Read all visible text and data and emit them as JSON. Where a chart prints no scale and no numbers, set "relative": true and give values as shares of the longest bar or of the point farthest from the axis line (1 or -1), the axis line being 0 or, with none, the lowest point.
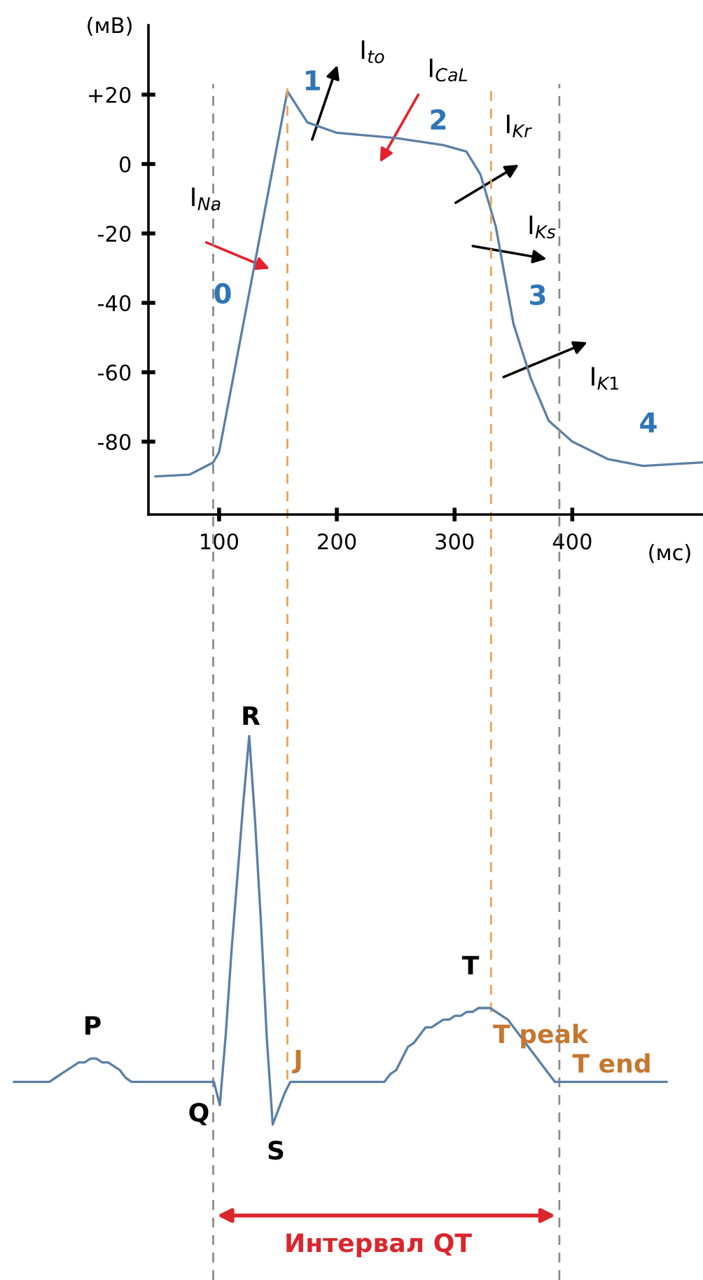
{
  "chart_data": [
    {
      "type": "line",
      "xlabel": "(мс)",
      "ylabel": "(мВ)",
      "x": [
        46,
        75,
        95,
        100,
        158,
        175,
        200,
        250,
        290,
        310,
        322,
        335,
        350,
        365,
        380,
        400,
        430,
        460,
        510
      ],
      "series": [
        {
          "color": "#5b7fa6",
          "values": [
            -90,
            -89.5,
            -86,
            -83,
            21,
            12,
            9,
            7.5,
            5.5,
            3.6,
            -3,
            -18,
            -46,
            -62,
            -74,
            -80,
            -85,
            -87,
            -86
          ]
        }
      ],
      "xlim": [
        40,
        511
      ],
      "ylim": [
        -101,
        40
      ],
      "xticks": [
        100,
        200,
        300,
        400
      ],
      "yticks": [
        {
          "value": 20,
          "label": "+20"
        },
        0,
        -20,
        -40,
        -60,
        -80
      ],
      "ref_lines": [
        {
          "axis": "x",
          "value": 95,
          "color": "#8c8c8c",
          "line_style": "dashed"
        },
        {
          "axis": "x",
          "value": 158,
          "color": "#e8a35a",
          "line_style": "dashed"
        },
        {
          "axis": "x",
          "value": 331,
          "color": "#e8a35a",
          "line_style": "dashed"
        },
        {
          "axis": "x",
          "value": 389,
          "color": "#8c8c8c",
          "line_style": "dashed"
        }
      ],
      "annotations": [
        "0",
        "1",
        "2",
        "3",
        "4",
        "I$_{Na}$",
        "I$_{to}$",
        "I$_{CaL}$",
        "I$_{Kr}$",
        "I$_{Ks}$",
        "I$_{K1}$"
      ]
    },
    {
      "type": "line",
      "relative": true,
      "categories": [
        null,
        null,
        null,
        null,
        null,
        null,
        null,
        null,
        null,
        null,
        null,
        null,
        null,
        null,
        null,
        null,
        null,
        null,
        null,
        null,
        null,
        null,
        null,
        null,
        null,
        null,
        null,
        null,
        null,
        null,
        null,
        null,
        null,
        null,
        null,
        null,
        null,
        null,
        null,
        null,
        null,
        null,
        null,
        null,
        null,
        null,
        null,
        null,
        null,
        null,
        null,
        null,
        null,
        null,
        null,
        null,
        null,
        null,
        null,
        null,
        null,
        null,
        null,
        null,
        null,
        null,
        null,
        null,
        null,
        null,
        null,
        null,
        null,
        null,
        null,
        null,
        null,
        null,
        null,
        null,
        null,
        null,
        null,
        null,
        null,
        null,
        null,
        null,
        null,
        null,
        null,
        null,
        null,
        null,
        null,
        null,
        null,
        null,
        null,
        null,
        null,
        null,
        null,
        null,
        null,
        null,
        null,
        null,
        null,
        null,
        null,
        null
      ],
      "series": [
        {
          "color": "#5b7fa6",
          "values": [
            0.11,
            0.11,
            0.11,
            0.11,
            0.11,
            0.11,
            0.11,
            0.12,
            0.13,
            0.14,
            0.15,
            0.16,
            0.16,
            0.17,
            0.17,
            0.16,
            0.16,
            0.15,
            0.14,
            0.12,
            0.11,
            0.11,
            0.11,
            0.11,
            0.11,
            0.11,
            0.11,
            0.11,
            0.11,
            0.11,
            0.11,
            0.11,
            0.11,
            0.11,
            0.11,
            0.05,
            0.23,
            0.45,
            0.64,
            0.83,
            1,
            0.78,
            0.52,
            0.22,
            0,
            0.04,
            0.08,
            0.11,
            0.11,
            0.11,
            0.11,
            0.11,
            0.11,
            0.11,
            0.11,
            0.11,
            0.11,
            0.11,
            0.11,
            0.11,
            0.11,
            0.11,
            0.11,
            0.11,
            0.13,
            0.14,
            0.17,
            0.2,
            0.21,
            0.23,
            0.25,
            0.25,
            0.26,
            0.27,
            0.27,
            0.28,
            0.28,
            0.29,
            0.29,
            0.3,
            0.3,
            0.3,
            0.29,
            0.28,
            0.27,
            0.25,
            0.23,
            0.21,
            0.19,
            0.17,
            0.15,
            0.13,
            0.11,
            0.11,
            0.11,
            0.11,
            0.11,
            0.11,
            0.11,
            0.11,
            0.11,
            0.11,
            0.11,
            0.11,
            0.11,
            0.11,
            0.11,
            0.11,
            0.11,
            0.11,
            0.11,
            0.11
          ]
        }
      ],
      "annotations": [
        "P",
        "R",
        "Q",
        "S",
        "T",
        "J",
        "T peak",
        "T end",
        "Интервал QT"
      ]
    }
  ]
}
